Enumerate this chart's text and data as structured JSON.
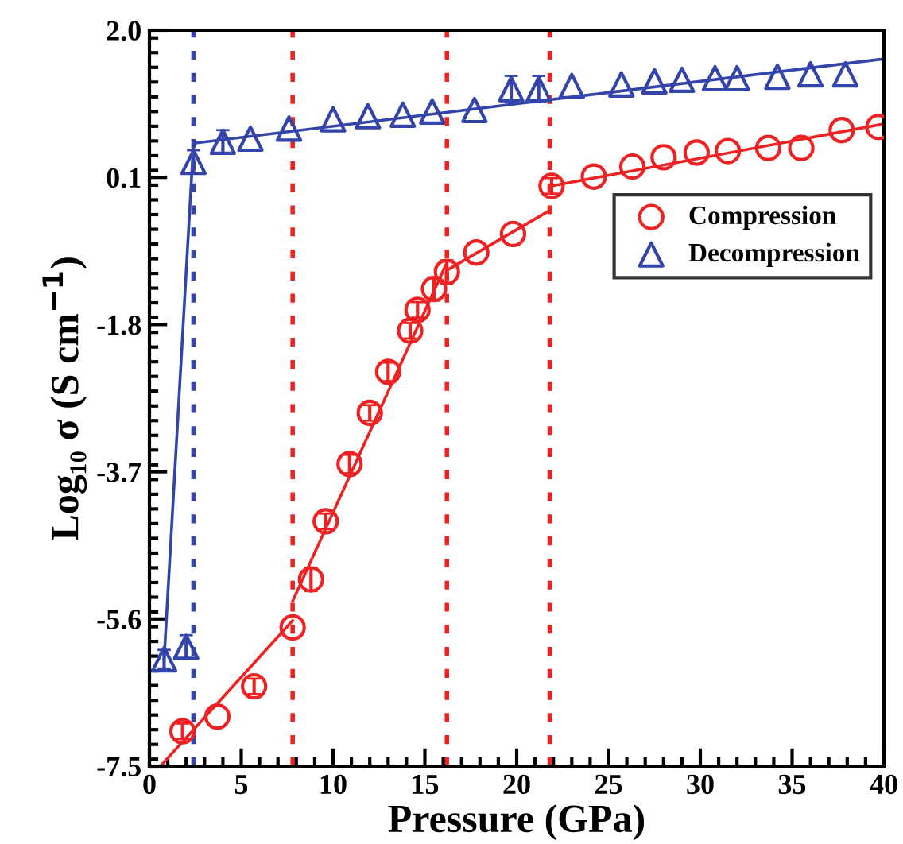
{
  "chart_data": {
    "type": "scatter",
    "xlabel": "Pressure (GPa)",
    "ylabel": "Log₁₀ σ (S cm$^{−1}$)",
    "xlim": [
      0,
      40
    ],
    "xticks": [
      0,
      5,
      10,
      15,
      20,
      25,
      30,
      35,
      40
    ],
    "ylim": [
      -7.5,
      2.0
    ],
    "yticks": [
      {
        "value": 2.0,
        "label": "2.0"
      },
      {
        "value": 0.1,
        "label": "0.1"
      },
      {
        "value": -1.8,
        "label": "-1.8"
      },
      {
        "value": -3.7,
        "label": "-3.7"
      },
      {
        "value": -5.6,
        "label": "-5.6"
      },
      {
        "value": -7.5,
        "label": "-7.5"
      }
    ],
    "grid": false,
    "legend": "right",
    "series": [
      {
        "name": "Compression",
        "color": "#ee2222",
        "marker": "circle",
        "x": [
          1.8,
          3.7,
          5.7,
          7.8,
          8.8,
          9.6,
          10.9,
          12.0,
          13.0,
          14.2,
          14.6,
          15.5,
          16.2,
          17.8,
          19.8,
          21.9,
          24.2,
          26.3,
          28.0,
          29.8,
          31.5,
          33.7,
          35.5,
          37.7,
          39.7
        ],
        "values": [
          -7.05,
          -6.86,
          -6.47,
          -5.71,
          -5.09,
          -4.34,
          -3.6,
          -2.94,
          -2.41,
          -1.88,
          -1.61,
          -1.34,
          -1.12,
          -0.87,
          -0.63,
          -0.01,
          0.11,
          0.24,
          0.36,
          0.42,
          0.44,
          0.48,
          0.48,
          0.71,
          0.75
        ],
        "errors": [
          0.1,
          null,
          0.1,
          null,
          0.15,
          0.1,
          0.12,
          0.1,
          0.12,
          0.1,
          0.1,
          0.15,
          0.15,
          null,
          null,
          0.1,
          null,
          null,
          null,
          null,
          null,
          null,
          null,
          null,
          null
        ]
      },
      {
        "name": "Decompression",
        "color": "#3344aa",
        "marker": "triangle",
        "x": [
          0.8,
          2.0,
          2.4,
          4.0,
          5.5,
          7.6,
          10.0,
          11.9,
          13.8,
          15.4,
          17.7,
          19.7,
          21.2,
          23.0,
          25.7,
          27.5,
          29.0,
          30.8,
          32.0,
          34.2,
          36.0,
          37.9
        ],
        "values": [
          -6.12,
          -5.96,
          0.3,
          0.56,
          0.6,
          0.73,
          0.85,
          0.89,
          0.91,
          0.95,
          0.97,
          1.24,
          1.24,
          1.28,
          1.3,
          1.34,
          1.36,
          1.38,
          1.38,
          1.4,
          1.43,
          1.43
        ],
        "errors": [
          0.12,
          0.15,
          0.15,
          0.15,
          null,
          null,
          null,
          null,
          null,
          null,
          null,
          0.17,
          0.17,
          null,
          null,
          null,
          null,
          null,
          null,
          null,
          null,
          null
        ]
      },
      {
        "type": "line",
        "color": "#ee2222",
        "x": [
          0.6,
          7.8
        ],
        "values": [
          -7.5,
          -5.62
        ]
      },
      {
        "type": "line",
        "color": "#ee2222",
        "x": [
          7.8,
          16.2
        ],
        "values": [
          -5.37,
          -1.0
        ]
      },
      {
        "type": "line",
        "color": "#ee2222",
        "x": [
          16.2,
          21.7
        ],
        "values": [
          -1.1,
          -0.34
        ]
      },
      {
        "type": "line",
        "color": "#ee2222",
        "x": [
          21.9,
          40
        ],
        "values": [
          -0.01,
          0.79
        ]
      },
      {
        "type": "line",
        "color": "#3344aa",
        "x": [
          0.8,
          2.4,
          40
        ],
        "values": [
          -6.12,
          0.54,
          1.63
        ]
      }
    ],
    "ref_lines": [
      {
        "axis": "x",
        "value": 2.4,
        "color": "#3344aa",
        "line_style": "dotted"
      },
      {
        "axis": "x",
        "value": 7.8,
        "color": "#ee2222",
        "line_style": "dotted"
      },
      {
        "axis": "x",
        "value": 16.2,
        "color": "#ee2222",
        "line_style": "dotted"
      },
      {
        "axis": "x",
        "value": 21.8,
        "color": "#ee2222",
        "line_style": "dotted"
      }
    ]
  }
}
